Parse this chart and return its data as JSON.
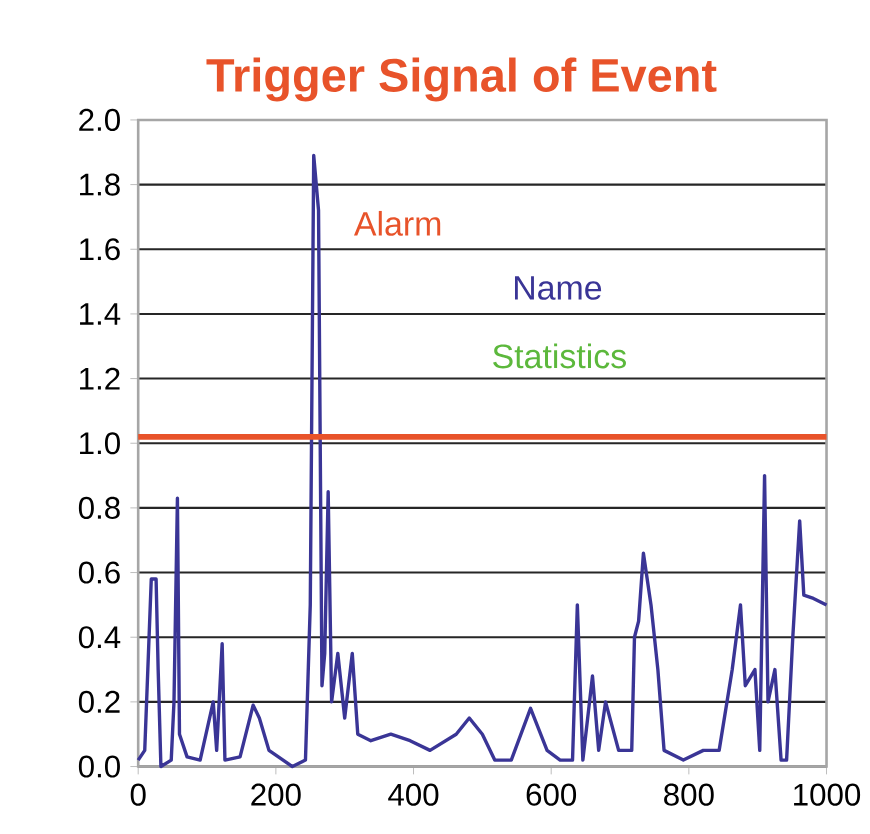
{
  "chart_data": {
    "type": "line",
    "title": "Trigger Signal of Event",
    "series": [
      {
        "name": "Name",
        "color": "#3a3596",
        "x": [
          0,
          9.5,
          14,
          19,
          26,
          29,
          33,
          48,
          52,
          57,
          60,
          71,
          90,
          109,
          114,
          122,
          126,
          148,
          167,
          176,
          190,
          224,
          243,
          250,
          255,
          262,
          267,
          271,
          276,
          281,
          290,
          300,
          311,
          319,
          338,
          367,
          395,
          424,
          462,
          481,
          500,
          518,
          542,
          570,
          594,
          613,
          631,
          638,
          646,
          660,
          669,
          679,
          698,
          717,
          721,
          727,
          734,
          745,
          755,
          764,
          792,
          821,
          844,
          863,
          875,
          882,
          896,
          903,
          910,
          915,
          925,
          934,
          942,
          951,
          961,
          967,
          981,
          1000
        ],
        "values": [
          0.02,
          0.05,
          0.3,
          0.58,
          0.58,
          0.3,
          0.0,
          0.02,
          0.2,
          0.83,
          0.1,
          0.03,
          0.02,
          0.2,
          0.05,
          0.38,
          0.02,
          0.03,
          0.19,
          0.15,
          0.05,
          0.0,
          0.02,
          0.5,
          1.89,
          1.72,
          0.25,
          0.35,
          0.85,
          0.2,
          0.35,
          0.15,
          0.35,
          0.1,
          0.08,
          0.1,
          0.08,
          0.05,
          0.1,
          0.15,
          0.1,
          0.02,
          0.02,
          0.18,
          0.05,
          0.02,
          0.02,
          0.5,
          0.02,
          0.28,
          0.05,
          0.2,
          0.05,
          0.05,
          0.4,
          0.45,
          0.66,
          0.5,
          0.3,
          0.05,
          0.02,
          0.05,
          0.05,
          0.3,
          0.5,
          0.25,
          0.3,
          0.05,
          0.9,
          0.2,
          0.3,
          0.02,
          0.02,
          0.4,
          0.76,
          0.53,
          0.52,
          0.5
        ]
      }
    ],
    "ref_lines": [
      {
        "axis": "y",
        "value": 1.02,
        "label": "Alarm",
        "color": "#e8532a"
      }
    ],
    "annotations": [
      "Statistics"
    ],
    "xlim": [
      0,
      1000
    ],
    "xticks": [
      0,
      200,
      400,
      600,
      800,
      1000
    ],
    "ylim": [
      0,
      2.0
    ],
    "yticks": [
      {
        "value": 0,
        "label": "0.0"
      },
      {
        "value": 0.2,
        "label": "0.2"
      },
      {
        "value": 0.4,
        "label": "0.4"
      },
      {
        "value": 0.6,
        "label": "0.6"
      },
      {
        "value": 0.8,
        "label": "0.8"
      },
      {
        "value": 1.0,
        "label": "1.0"
      },
      {
        "value": 1.2,
        "label": "1.2"
      },
      {
        "value": 1.4,
        "label": "1.4"
      },
      {
        "value": 1.6,
        "label": "1.6"
      },
      {
        "value": 1.8,
        "label": "1.8"
      },
      {
        "value": 2.0,
        "label": "2.0"
      }
    ],
    "grid": "y",
    "legend": "top",
    "marker": "none",
    "line_style": "solid"
  }
}
